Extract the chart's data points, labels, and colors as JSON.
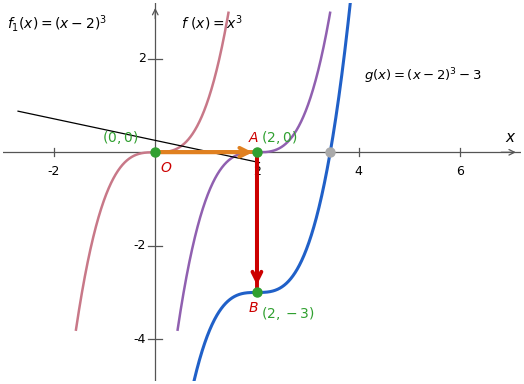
{
  "xlim": [
    -3.0,
    7.2
  ],
  "ylim": [
    -4.9,
    3.2
  ],
  "xticks": [
    -2,
    2,
    4,
    6
  ],
  "yticks": [
    -4,
    -2,
    2
  ],
  "xlabel": "x",
  "f_color": "#c87888",
  "f1_color": "#9060b0",
  "g_color": "#2060c8",
  "arrow_h_color": "#e08020",
  "arrow_v_color": "#cc0000",
  "point_green": "#30a030",
  "point_gray": "#aaaaaa",
  "label_color_red": "#cc0000",
  "label_color_green": "#30a030",
  "black_line_x0": -2.7,
  "black_line_y0": 0.88,
  "black_line_x1": 2.05,
  "black_line_y1": -0.22,
  "bg_color": "#ffffff"
}
